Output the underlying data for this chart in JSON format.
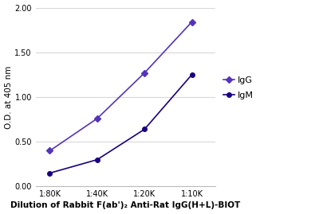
{
  "x_labels": [
    "1:80K",
    "1:40K",
    "1:20K",
    "1:10K"
  ],
  "x_values": [
    1,
    2,
    3,
    4
  ],
  "IgG_values": [
    0.4,
    0.76,
    1.27,
    1.84
  ],
  "IgM_values": [
    0.15,
    0.3,
    0.64,
    1.25
  ],
  "IgG_color": "#5533bb",
  "IgM_color": "#1a0080",
  "ylabel": "O.D. at 405 nm",
  "xlabel": "Dilution of Rabbit F(ab')₂ Anti-Rat IgG(H+L)-BIOT",
  "ylim": [
    0.0,
    2.0
  ],
  "yticks": [
    0.0,
    0.5,
    1.0,
    1.5,
    2.0
  ],
  "background_color": "#ffffff",
  "plot_bg": "#f5f5f5",
  "legend_IgG": "IgG",
  "legend_IgM": "IgM",
  "grid_color": "#d8d8d8",
  "figsize": [
    4.0,
    2.69
  ],
  "dpi": 100
}
